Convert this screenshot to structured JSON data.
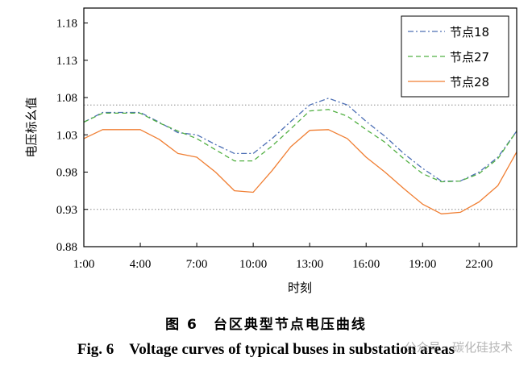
{
  "chart_data": {
    "type": "line",
    "xlabel": "时刻",
    "ylabel": "电压标幺值",
    "x": [
      1,
      2,
      3,
      4,
      5,
      6,
      7,
      8,
      9,
      10,
      11,
      12,
      13,
      14,
      15,
      16,
      17,
      18,
      19,
      20,
      21,
      22,
      23,
      24
    ],
    "x_ticks": [
      1,
      4,
      7,
      10,
      13,
      16,
      19,
      22
    ],
    "x_tick_labels": [
      "1:00",
      "4:00",
      "7:00",
      "10:00",
      "13:00",
      "16:00",
      "19:00",
      "22:00"
    ],
    "xlim": [
      1,
      24
    ],
    "ylim": [
      0.88,
      1.2
    ],
    "y_ticks": [
      0.88,
      0.93,
      0.98,
      1.03,
      1.08,
      1.13,
      1.18
    ],
    "y_tick_labels": [
      "0.88",
      "0.93",
      "0.98",
      "1.03",
      "1.08",
      "1.13",
      "1.18"
    ],
    "reference_lines": [
      1.07,
      0.93
    ],
    "legend_position": "top-right",
    "series": [
      {
        "name": "节点18",
        "color": "#4d6fb5",
        "dash": "dashdot",
        "values": [
          1.047,
          1.06,
          1.06,
          1.06,
          1.047,
          1.033,
          1.03,
          1.017,
          1.005,
          1.005,
          1.025,
          1.048,
          1.07,
          1.079,
          1.07,
          1.048,
          1.028,
          1.005,
          0.985,
          0.968,
          0.968,
          0.98,
          1.0,
          1.035
        ]
      },
      {
        "name": "节点27",
        "color": "#52b043",
        "dash": "dashed",
        "values": [
          1.047,
          1.059,
          1.059,
          1.059,
          1.046,
          1.035,
          1.025,
          1.01,
          0.995,
          0.995,
          1.015,
          1.038,
          1.062,
          1.064,
          1.055,
          1.037,
          1.02,
          0.998,
          0.978,
          0.967,
          0.968,
          0.978,
          0.998,
          1.035
        ]
      },
      {
        "name": "节点28",
        "color": "#f07e32",
        "dash": "solid",
        "values": [
          1.025,
          1.037,
          1.037,
          1.037,
          1.024,
          1.005,
          1.0,
          0.98,
          0.955,
          0.953,
          0.982,
          1.014,
          1.036,
          1.037,
          1.025,
          1.0,
          0.98,
          0.958,
          0.937,
          0.924,
          0.926,
          0.94,
          0.962,
          1.007
        ]
      }
    ]
  },
  "caption": {
    "cn": "图 6　台区典型节点电压曲线",
    "en": "Fig. 6　Voltage curves of typical buses in substation areas"
  },
  "watermark": "公众号 · 碳化硅技术"
}
